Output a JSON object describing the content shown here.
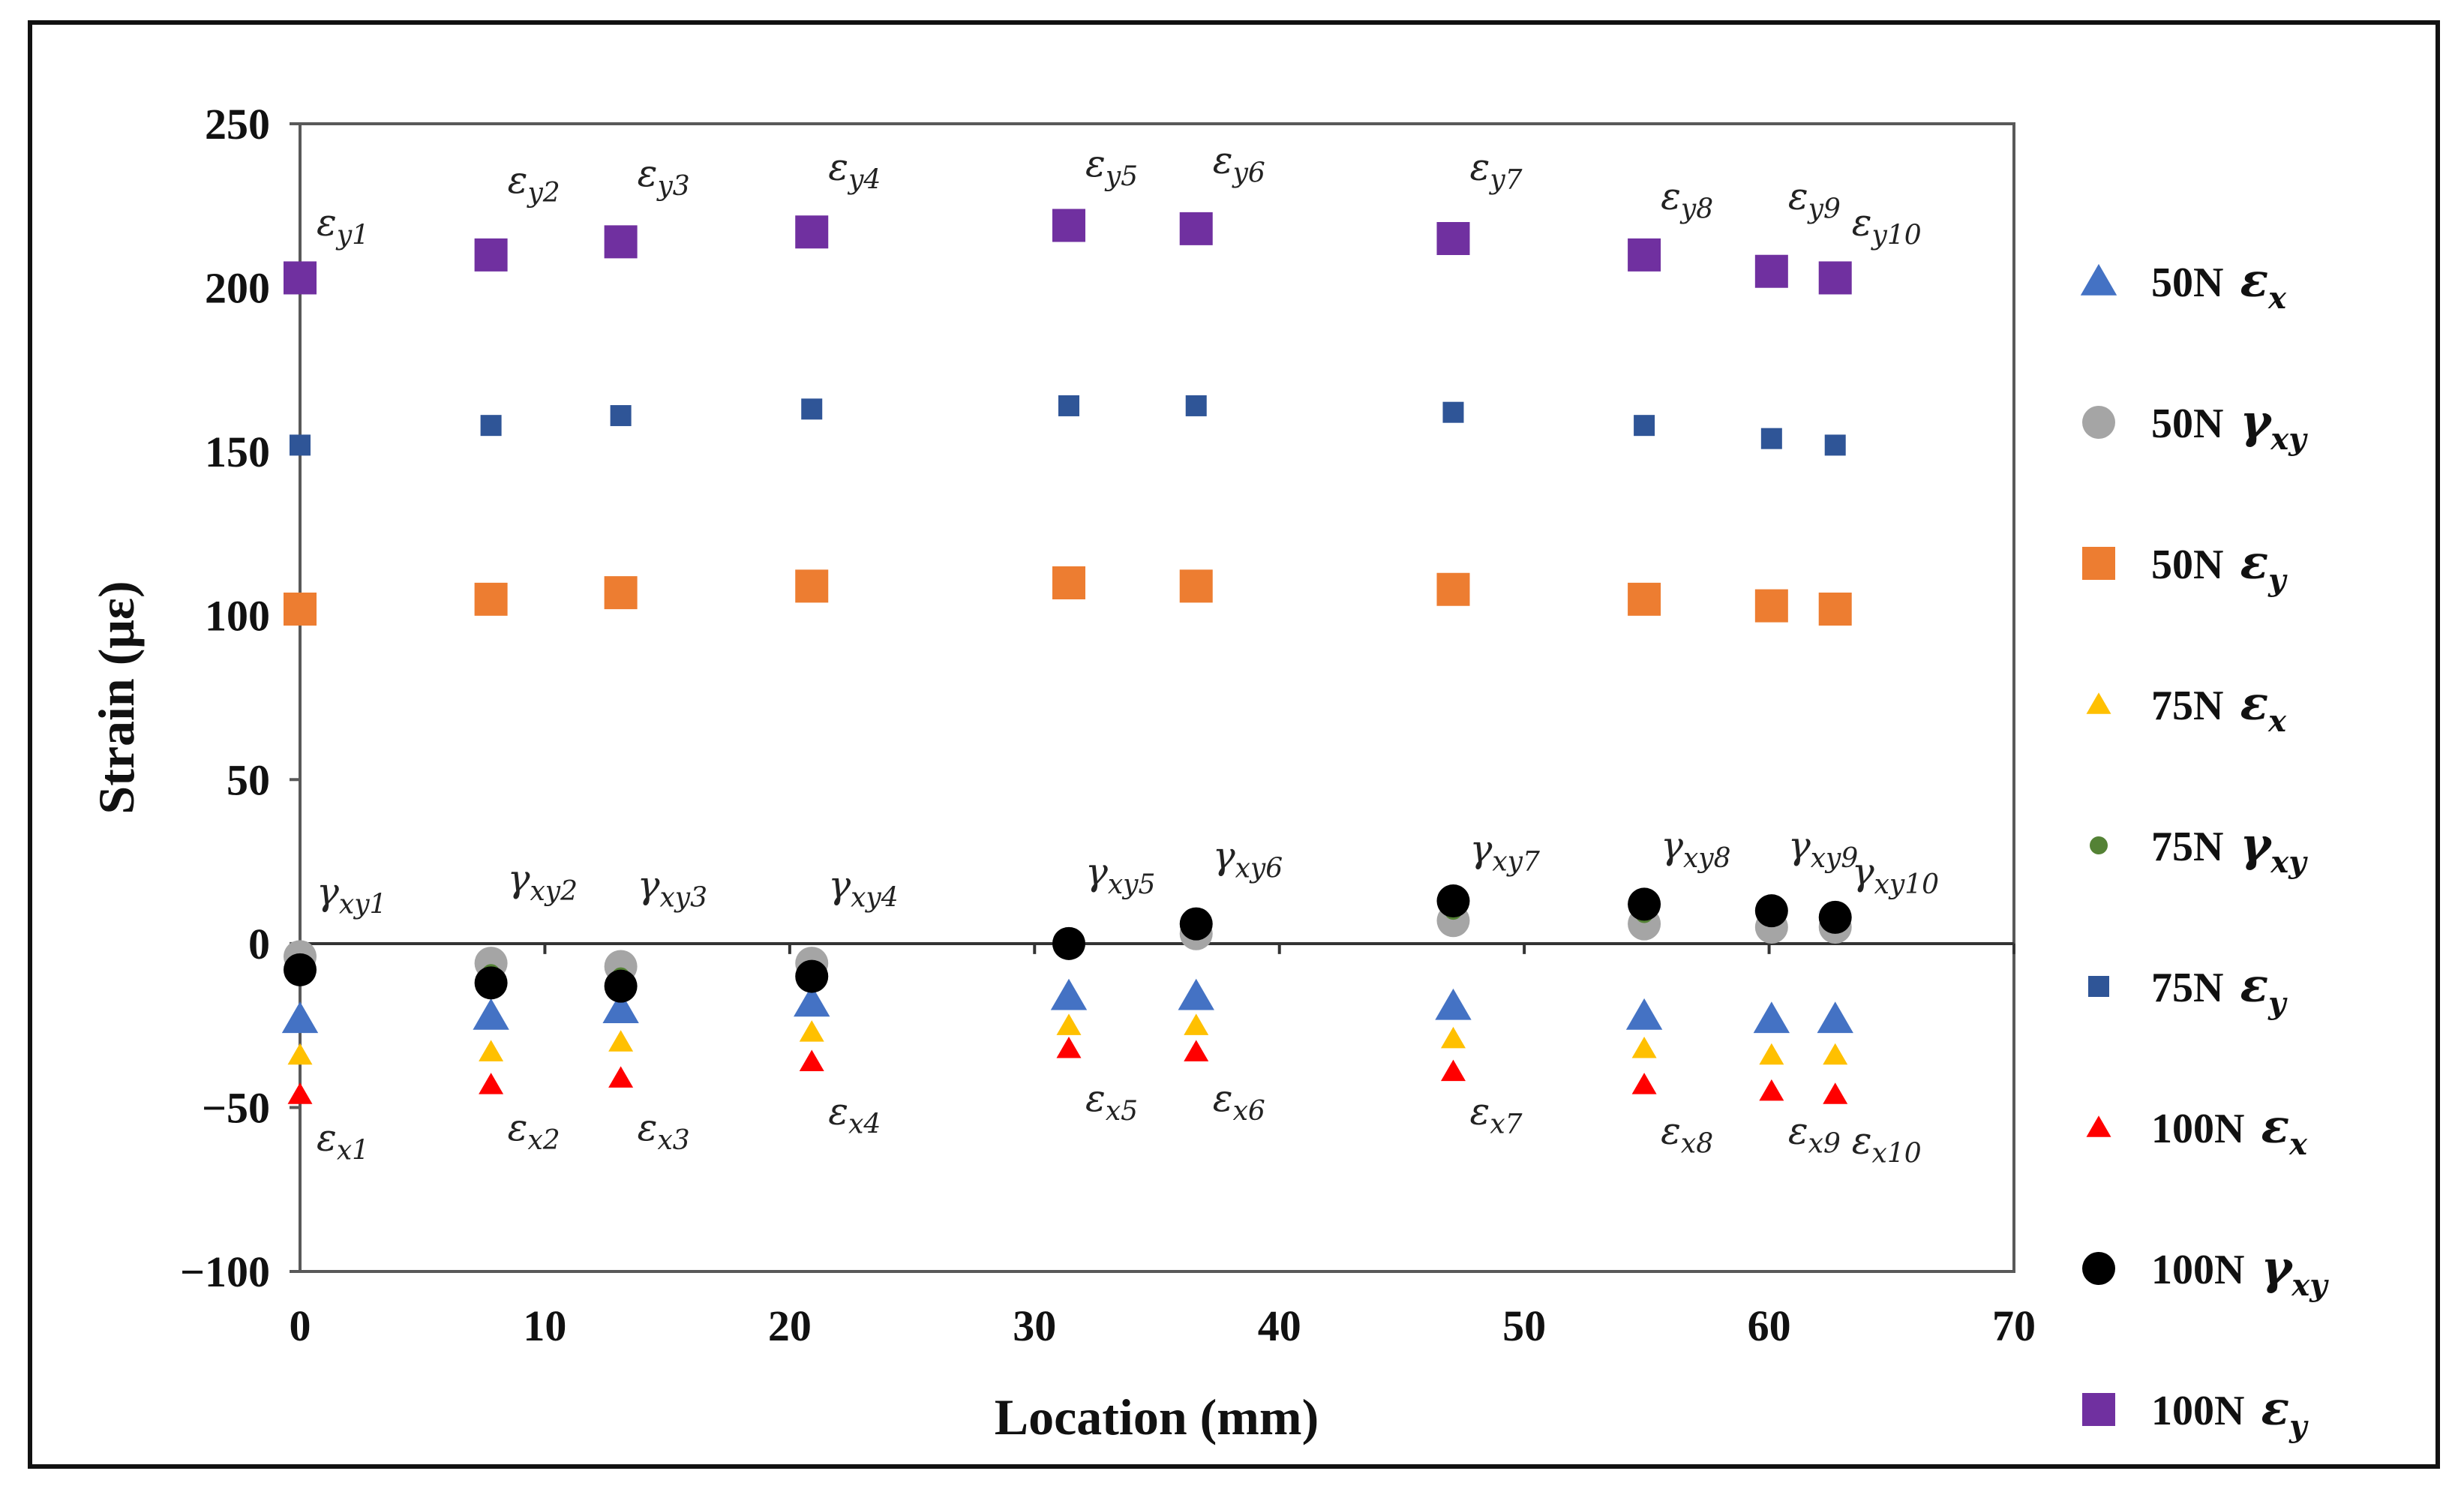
{
  "chart_data": {
    "type": "scatter",
    "title": "",
    "xlabel": "Location (mm)",
    "ylabel": "Strain (με)",
    "xlim": [
      0,
      70
    ],
    "ylim": [
      -100,
      250
    ],
    "x_ticks": [
      0,
      10,
      20,
      30,
      40,
      50,
      60,
      70
    ],
    "x_tick_labels": [
      "0",
      "10",
      "20",
      "30",
      "40",
      "50",
      "60",
      "70"
    ],
    "y_ticks": [
      250,
      200,
      150,
      100,
      50,
      0,
      -50,
      -100
    ],
    "y_tick_labels": [
      "250",
      "200",
      "150",
      "100",
      "50",
      "0",
      "−50",
      "−100"
    ],
    "grid": false,
    "legend_position": "right",
    "x": [
      0,
      7.8,
      13.1,
      20.9,
      31.4,
      36.6,
      47.1,
      54.9,
      60.1,
      62.7
    ],
    "series": [
      {
        "name": "50N εx",
        "label": "50N",
        "symbol": "ε",
        "sub": "x",
        "marker": "triangle",
        "color": "#4472C4",
        "values": [
          -23,
          -22,
          -20,
          -18,
          -16,
          -16,
          -19,
          -22,
          -23,
          -23
        ]
      },
      {
        "name": "50N γxy",
        "label": "50N",
        "symbol": "γ",
        "sub": "xy",
        "marker": "circle",
        "color": "#A5A5A5",
        "values": [
          -4,
          -6,
          -7,
          -6,
          0,
          3,
          7,
          6,
          5,
          5
        ]
      },
      {
        "name": "50N εy",
        "label": "50N",
        "symbol": "ε",
        "sub": "y",
        "marker": "square",
        "color": "#ED7D31",
        "values": [
          102,
          105,
          107,
          109,
          110,
          109,
          108,
          105,
          103,
          102
        ]
      },
      {
        "name": "75N εx",
        "label": "75N",
        "symbol": "ε",
        "sub": "x",
        "marker": "triangle-small",
        "color": "#FFC000",
        "values": [
          -34,
          -33,
          -30,
          -27,
          -25,
          -25,
          -29,
          -32,
          -34,
          -34
        ]
      },
      {
        "name": "75N γxy",
        "label": "75N",
        "symbol": "γ",
        "sub": "xy",
        "marker": "circle-small",
        "color": "#548235",
        "values": [
          -6,
          -9,
          -10,
          -8,
          0,
          5,
          10,
          9,
          8,
          7
        ]
      },
      {
        "name": "75N εy",
        "label": "75N",
        "symbol": "ε",
        "sub": "y",
        "marker": "square-small",
        "color": "#2F5597",
        "values": [
          152,
          158,
          161,
          163,
          164,
          164,
          162,
          158,
          154,
          152
        ]
      },
      {
        "name": "100N εx",
        "label": "100N",
        "symbol": "ε",
        "sub": "x",
        "marker": "triangle-small",
        "color": "#FF0000",
        "values": [
          -46,
          -43,
          -41,
          -36,
          -32,
          -33,
          -39,
          -43,
          -45,
          -46
        ]
      },
      {
        "name": "100N γxy",
        "label": "100N",
        "symbol": "γ",
        "sub": "xy",
        "marker": "circle",
        "color": "#000000",
        "values": [
          -8,
          -12,
          -13,
          -10,
          0,
          6,
          13,
          12,
          10,
          8
        ]
      },
      {
        "name": "100N εy",
        "label": "100N",
        "symbol": "ε",
        "sub": "y",
        "marker": "square",
        "color": "#7030A0",
        "values": [
          203,
          210,
          214,
          217,
          219,
          218,
          215,
          210,
          205,
          203
        ]
      }
    ],
    "annotations": [
      {
        "main": "ε",
        "sub": "y1",
        "x": 0,
        "y": 216
      },
      {
        "main": "ε",
        "sub": "y2",
        "x": 7.8,
        "y": 229
      },
      {
        "main": "ε",
        "sub": "y3",
        "x": 13.1,
        "y": 231
      },
      {
        "main": "ε",
        "sub": "y4",
        "x": 20.9,
        "y": 233
      },
      {
        "main": "ε",
        "sub": "y5",
        "x": 31.4,
        "y": 234
      },
      {
        "main": "ε",
        "sub": "y6",
        "x": 36.6,
        "y": 235
      },
      {
        "main": "ε",
        "sub": "y7",
        "x": 47.1,
        "y": 233
      },
      {
        "main": "ε",
        "sub": "y8",
        "x": 54.9,
        "y": 224
      },
      {
        "main": "ε",
        "sub": "y9",
        "x": 60.1,
        "y": 224
      },
      {
        "main": "ε",
        "sub": "y10",
        "x": 62.7,
        "y": 216
      },
      {
        "main": "γ",
        "sub": "xy1",
        "x": 0,
        "y": 12
      },
      {
        "main": "γ",
        "sub": "xy2",
        "x": 7.8,
        "y": 16
      },
      {
        "main": "γ",
        "sub": "xy3",
        "x": 13.1,
        "y": 14
      },
      {
        "main": "γ",
        "sub": "xy4",
        "x": 20.9,
        "y": 14
      },
      {
        "main": "γ",
        "sub": "xy5",
        "x": 31.4,
        "y": 18
      },
      {
        "main": "γ",
        "sub": "xy6",
        "x": 36.6,
        "y": 23
      },
      {
        "main": "γ",
        "sub": "xy7",
        "x": 47.1,
        "y": 25
      },
      {
        "main": "γ",
        "sub": "xy8",
        "x": 54.9,
        "y": 26
      },
      {
        "main": "γ",
        "sub": "xy9",
        "x": 60.1,
        "y": 26
      },
      {
        "main": "γ",
        "sub": "xy10",
        "x": 62.7,
        "y": 18
      },
      {
        "main": "ε",
        "sub": "x1",
        "x": 0,
        "y": -63
      },
      {
        "main": "ε",
        "sub": "x2",
        "x": 7.8,
        "y": -60
      },
      {
        "main": "ε",
        "sub": "x3",
        "x": 13.1,
        "y": -60
      },
      {
        "main": "ε",
        "sub": "x4",
        "x": 20.9,
        "y": -55
      },
      {
        "main": "ε",
        "sub": "x5",
        "x": 31.4,
        "y": -51
      },
      {
        "main": "ε",
        "sub": "x6",
        "x": 36.6,
        "y": -51
      },
      {
        "main": "ε",
        "sub": "x7",
        "x": 47.1,
        "y": -55
      },
      {
        "main": "ε",
        "sub": "x8",
        "x": 54.9,
        "y": -61
      },
      {
        "main": "ε",
        "sub": "x9",
        "x": 60.1,
        "y": -61
      },
      {
        "main": "ε",
        "sub": "x10",
        "x": 62.7,
        "y": -64
      }
    ]
  }
}
